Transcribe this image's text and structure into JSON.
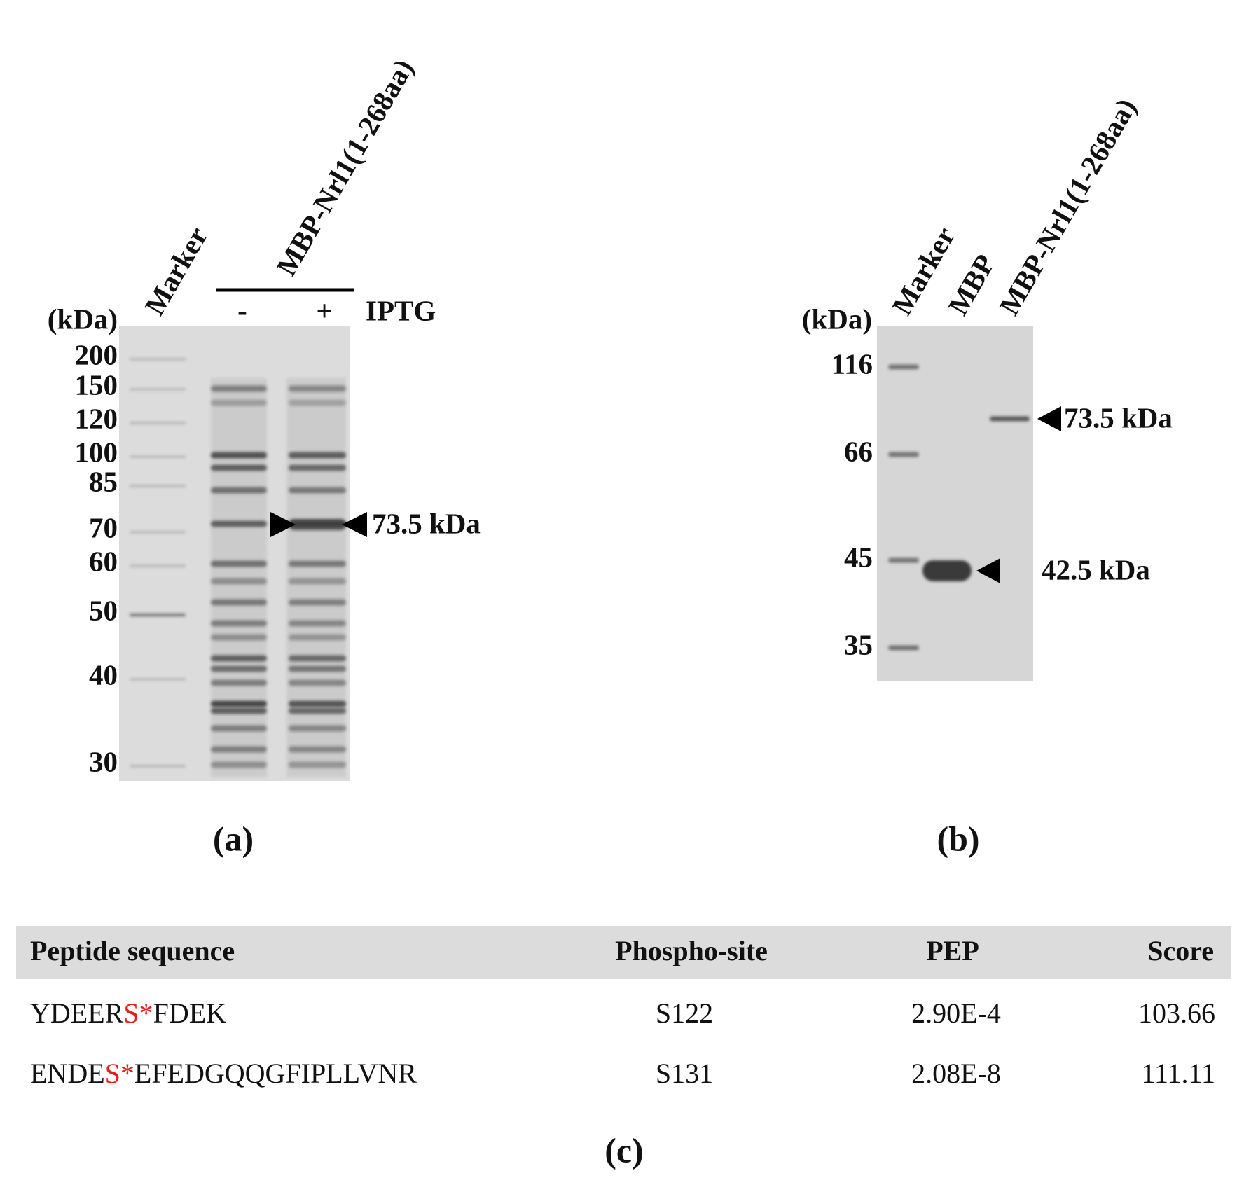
{
  "panel_a": {
    "lane_labels": [
      "Marker",
      "MBP-Nrl1(1-268aa)"
    ],
    "unit": "(kDa)",
    "markers": [
      "200",
      "150",
      "120",
      "100",
      "85",
      "70",
      "60",
      "50",
      "40",
      "30"
    ],
    "iptg_minus": "-",
    "iptg_plus": "+",
    "iptg": "IPTG",
    "annotation": "73.5 kDa",
    "caption": "(a)"
  },
  "panel_b": {
    "lane_labels": [
      "Marker",
      "MBP",
      "MBP-Nrl1(1-268aa)"
    ],
    "unit": "(kDa)",
    "markers": [
      "116",
      "66",
      "45",
      "35"
    ],
    "annotations": [
      "73.5 kDa",
      "42.5 kDa"
    ],
    "caption": "(b)"
  },
  "table": {
    "header": [
      "Peptide sequence",
      "Phospho-site",
      "PEP",
      "Score"
    ],
    "rows": [
      {
        "peptide": [
          "YDEER",
          "S*",
          "FDEK"
        ],
        "site": "S122",
        "pep": "2.90E-4",
        "score": "103.66"
      },
      {
        "peptide": [
          "ENDE",
          "S*",
          "EFEDGQQGFIPLLVNR"
        ],
        "site": "S131",
        "pep": "2.08E-8",
        "score": "111.11"
      }
    ],
    "caption": "(c)"
  }
}
